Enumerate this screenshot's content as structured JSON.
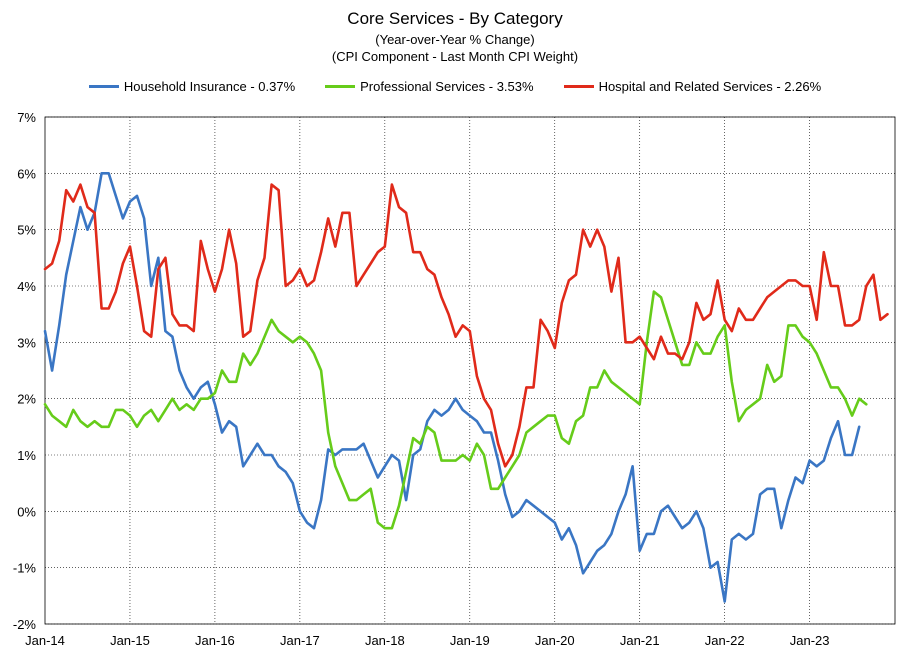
{
  "chart_data": {
    "type": "line",
    "title": "Core Services  - By Category",
    "subtitle": [
      "(Year-over-Year % Change)",
      "(CPI Component - Last Month CPI Weight)"
    ],
    "xlabel": "",
    "ylabel": "",
    "ylim": [
      -2,
      7
    ],
    "yticks": [
      "7%",
      "6%",
      "5%",
      "4%",
      "3%",
      "2%",
      "1%",
      "0%",
      "-1%",
      "-2%"
    ],
    "xtick_labels": [
      "Jan-14",
      "Jan-15",
      "Jan-16",
      "Jan-17",
      "Jan-18",
      "Jan-19",
      "Jan-20",
      "Jan-21",
      "Jan-22",
      "Jan-23"
    ],
    "x_start": "2014-01",
    "x_end": "2023-07",
    "grid": "vertical",
    "legend_position": "top",
    "series": [
      {
        "name": "Household Insurance - 0.37%",
        "color": "#3a76c4",
        "values": [
          3.2,
          2.5,
          3.3,
          4.2,
          4.8,
          5.4,
          5.0,
          5.3,
          6.0,
          6.0,
          5.6,
          5.2,
          5.5,
          5.6,
          5.2,
          4.0,
          4.5,
          3.2,
          3.1,
          2.5,
          2.2,
          2.0,
          2.2,
          2.3,
          1.9,
          1.4,
          1.6,
          1.5,
          0.8,
          1.0,
          1.2,
          1.0,
          1.0,
          0.8,
          0.7,
          0.5,
          0.0,
          -0.2,
          -0.3,
          0.2,
          1.1,
          1.0,
          1.1,
          1.1,
          1.1,
          1.2,
          0.9,
          0.6,
          0.8,
          1.0,
          0.9,
          0.2,
          1.0,
          1.1,
          1.6,
          1.8,
          1.7,
          1.8,
          2.0,
          1.8,
          1.7,
          1.6,
          1.4,
          1.4,
          0.9,
          0.3,
          -0.1,
          0.0,
          0.2,
          0.1,
          0.0,
          -0.1,
          -0.2,
          -0.5,
          -0.3,
          -0.6,
          -1.1,
          -0.9,
          -0.7,
          -0.6,
          -0.4,
          0.0,
          0.3,
          0.8,
          -0.7,
          -0.4,
          -0.4,
          0.0,
          0.1,
          -0.1,
          -0.3,
          -0.2,
          0.0,
          -0.3,
          -1.0,
          -0.9,
          -1.6,
          -0.5,
          -0.4,
          -0.5,
          -0.4,
          0.3,
          0.4,
          0.4,
          -0.3,
          0.2,
          0.6,
          0.5,
          0.9,
          0.8,
          0.9,
          1.3,
          1.6,
          1.0,
          1.0,
          1.5
        ]
      },
      {
        "name": "Professional Services - 3.53%",
        "color": "#66cc1a",
        "values": [
          1.9,
          1.7,
          1.6,
          1.5,
          1.8,
          1.6,
          1.5,
          1.6,
          1.5,
          1.5,
          1.8,
          1.8,
          1.7,
          1.5,
          1.7,
          1.8,
          1.6,
          1.8,
          2.0,
          1.8,
          1.9,
          1.8,
          2.0,
          2.0,
          2.1,
          2.5,
          2.3,
          2.3,
          2.8,
          2.6,
          2.8,
          3.1,
          3.4,
          3.2,
          3.1,
          3.0,
          3.1,
          3.0,
          2.8,
          2.5,
          1.4,
          0.8,
          0.5,
          0.2,
          0.2,
          0.3,
          0.4,
          -0.2,
          -0.3,
          -0.3,
          0.1,
          0.7,
          1.3,
          1.2,
          1.5,
          1.4,
          0.9,
          0.9,
          0.9,
          1.0,
          0.9,
          1.2,
          1.0,
          0.4,
          0.4,
          0.6,
          0.8,
          1.0,
          1.4,
          1.5,
          1.6,
          1.7,
          1.7,
          1.3,
          1.2,
          1.6,
          1.7,
          2.2,
          2.2,
          2.5,
          2.3,
          2.2,
          2.1,
          2.0,
          1.9,
          3.0,
          3.9,
          3.8,
          3.4,
          3.0,
          2.6,
          2.6,
          3.0,
          2.8,
          2.8,
          3.1,
          3.3,
          2.3,
          1.6,
          1.8,
          1.9,
          2.0,
          2.6,
          2.3,
          2.4,
          3.3,
          3.3,
          3.1,
          3.0,
          2.8,
          2.5,
          2.2,
          2.2,
          2.0,
          1.7,
          2.0,
          1.9
        ]
      },
      {
        "name": "Hospital and Related Services - 2.26%",
        "color": "#e02a1a",
        "values": [
          4.3,
          4.4,
          4.8,
          5.7,
          5.5,
          5.8,
          5.4,
          5.3,
          3.6,
          3.6,
          3.9,
          4.4,
          4.7,
          4.0,
          3.2,
          3.1,
          4.3,
          4.5,
          3.5,
          3.3,
          3.3,
          3.2,
          4.8,
          4.3,
          3.9,
          4.3,
          5.0,
          4.4,
          3.1,
          3.2,
          4.1,
          4.5,
          5.8,
          5.7,
          4.0,
          4.1,
          4.3,
          4.0,
          4.1,
          4.6,
          5.2,
          4.7,
          5.3,
          5.3,
          4.0,
          4.2,
          4.4,
          4.6,
          4.7,
          5.8,
          5.4,
          5.3,
          4.6,
          4.6,
          4.3,
          4.2,
          3.8,
          3.5,
          3.1,
          3.3,
          3.2,
          2.4,
          2.0,
          1.8,
          1.2,
          0.8,
          1.0,
          1.5,
          2.2,
          2.2,
          3.4,
          3.2,
          2.9,
          3.7,
          4.1,
          4.2,
          5.0,
          4.7,
          5.0,
          4.7,
          3.9,
          4.5,
          3.0,
          3.0,
          3.1,
          2.9,
          2.7,
          3.1,
          2.8,
          2.8,
          2.7,
          3.0,
          3.7,
          3.4,
          3.5,
          4.1,
          3.4,
          3.2,
          3.6,
          3.4,
          3.4,
          3.6,
          3.8,
          3.9,
          4.0,
          4.1,
          4.1,
          4.0,
          4.0,
          3.4,
          4.6,
          4.0,
          4.0,
          3.3,
          3.3,
          3.4,
          4.0,
          4.2,
          3.4,
          3.5
        ]
      }
    ]
  }
}
